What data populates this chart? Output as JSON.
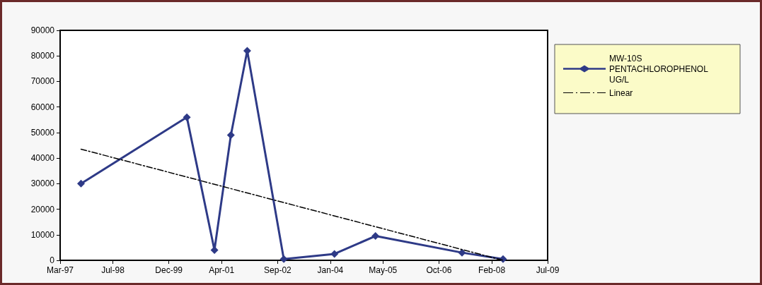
{
  "chart_data": {
    "type": "line",
    "x": [
      "1997-09-10",
      "2000-05-15",
      "2001-01-25",
      "2001-06-26",
      "2001-11-24",
      "2002-10-28",
      "2004-02-08",
      "2005-02-21",
      "2007-05-02",
      "2008-05-15"
    ],
    "series": [
      {
        "name": "MW-10S PENTACHLOROPHENOL UG/L",
        "color": "#2e3a87",
        "marker": "diamond",
        "line_style": "solid",
        "values": [
          30000,
          56000,
          4000,
          49000,
          82000,
          500,
          2500,
          9500,
          3000,
          500
        ]
      },
      {
        "name": "Linear",
        "type": "line",
        "color": "#000000",
        "marker": "none",
        "line_style": "dashed",
        "x": [
          "1997-09-10",
          "2008-05-15"
        ],
        "values": [
          43500,
          0
        ]
      }
    ],
    "xlim": [
      "1997-03-01",
      "2009-07-01"
    ],
    "xticks": [
      {
        "value": "1997-03-01",
        "label": "Mar-97"
      },
      {
        "value": "1998-07-01",
        "label": "Jul-98"
      },
      {
        "value": "1999-12-01",
        "label": "Dec-99"
      },
      {
        "value": "2001-04-01",
        "label": "Apr-01"
      },
      {
        "value": "2002-09-01",
        "label": "Sep-02"
      },
      {
        "value": "2004-01-01",
        "label": "Jan-04"
      },
      {
        "value": "2005-05-01",
        "label": "May-05"
      },
      {
        "value": "2006-10-01",
        "label": "Oct-06"
      },
      {
        "value": "2008-02-01",
        "label": "Feb-08"
      },
      {
        "value": "2009-07-01",
        "label": "Jul-09"
      }
    ],
    "ylim": [
      0,
      90000
    ],
    "yticks": [
      0,
      10000,
      20000,
      30000,
      40000,
      50000,
      60000,
      70000,
      80000,
      90000
    ],
    "grid": false,
    "legend": "right"
  }
}
